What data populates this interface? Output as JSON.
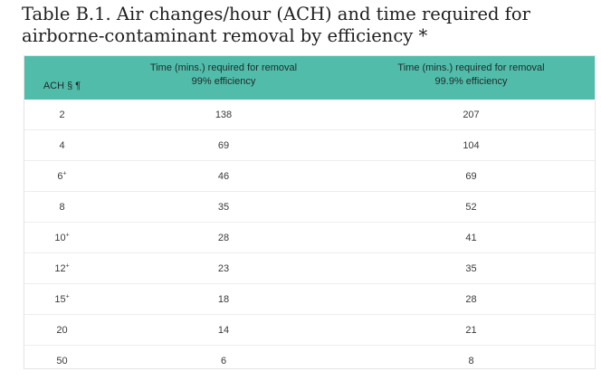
{
  "document": {
    "title": "Table B.1. Air changes/hour (ACH) and time required for airborne-contaminant removal by efficiency *"
  },
  "table": {
    "headers": {
      "ach": "ACH § ¶",
      "col99_line1": "Time (mins.) required for removal",
      "col99_line2": "99% efficiency",
      "col999_line1": "Time (mins.) required for removal",
      "col999_line2": "99.9% efficiency"
    },
    "rows": [
      {
        "ach": "2",
        "ach_mark": "",
        "t99": "138",
        "t999": "207"
      },
      {
        "ach": "4",
        "ach_mark": "",
        "t99": "69",
        "t999": "104"
      },
      {
        "ach": "6",
        "ach_mark": "+",
        "t99": "46",
        "t999": "69"
      },
      {
        "ach": "8",
        "ach_mark": "",
        "t99": "35",
        "t999": "52"
      },
      {
        "ach": "10",
        "ach_mark": "+",
        "t99": "28",
        "t999": "41"
      },
      {
        "ach": "12",
        "ach_mark": "+",
        "t99": "23",
        "t999": "35"
      },
      {
        "ach": "15",
        "ach_mark": "+",
        "t99": "18",
        "t999": "28"
      },
      {
        "ach": "20",
        "ach_mark": "",
        "t99": "14",
        "t999": "21"
      },
      {
        "ach": "50",
        "ach_mark": "",
        "t99": "6",
        "t999": "8"
      }
    ]
  },
  "colors": {
    "header_bg": "#52bcab",
    "row_divider": "#ededed"
  }
}
